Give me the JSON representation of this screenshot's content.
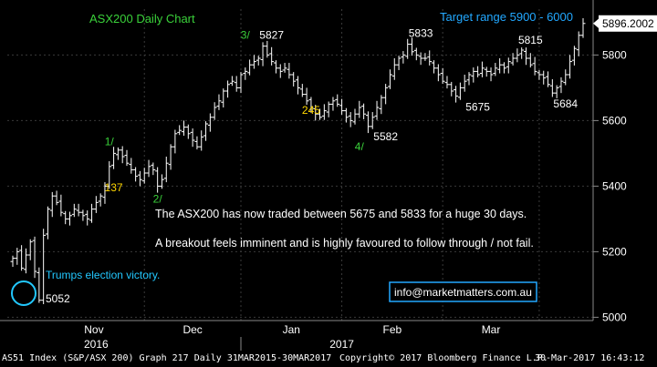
{
  "chart_data": {
    "type": "ohlc",
    "title": "ASX200 Daily Chart",
    "target_note": "Target range 5900 - 6000",
    "last_price": "5896.2002",
    "ylim": [
      4990,
      5940
    ],
    "yticks": [
      5000,
      5200,
      5400,
      5600,
      5800
    ],
    "months": [
      "Nov",
      "Dec",
      "Jan",
      "Feb",
      "Mar"
    ],
    "years": [
      "2016",
      "2017"
    ],
    "closes": [
      5180,
      5200,
      5150,
      5190,
      5230,
      5140,
      5052,
      5250,
      5330,
      5370,
      5350,
      5320,
      5300,
      5310,
      5330,
      5320,
      5310,
      5300,
      5330,
      5350,
      5370,
      5400,
      5460,
      5500,
      5510,
      5490,
      5470,
      5450,
      5430,
      5420,
      5440,
      5460,
      5450,
      5400,
      5420,
      5470,
      5520,
      5560,
      5570,
      5580,
      5560,
      5540,
      5520,
      5550,
      5590,
      5610,
      5640,
      5660,
      5690,
      5710,
      5720,
      5700,
      5740,
      5750,
      5770,
      5780,
      5790,
      5827,
      5800,
      5780,
      5760,
      5750,
      5760,
      5740,
      5720,
      5700,
      5680,
      5660,
      5640,
      5620,
      5610,
      5630,
      5650,
      5660,
      5650,
      5630,
      5610,
      5600,
      5620,
      5640,
      5620,
      5582,
      5610,
      5640,
      5670,
      5700,
      5740,
      5770,
      5790,
      5800,
      5833,
      5810,
      5800,
      5790,
      5790,
      5780,
      5760,
      5740,
      5720,
      5710,
      5690,
      5675,
      5700,
      5720,
      5740,
      5750,
      5740,
      5760,
      5750,
      5740,
      5760,
      5770,
      5760,
      5780,
      5790,
      5800,
      5815,
      5790,
      5770,
      5750,
      5740,
      5730,
      5710,
      5684,
      5700,
      5720,
      5740,
      5780,
      5820,
      5860,
      5896.2
    ],
    "annotations": [
      {
        "text": "1/",
        "x": 22,
        "y": 5525,
        "color": "#3ad13a"
      },
      {
        "text": "137",
        "x": 23,
        "y": 5385,
        "color": "#ffd700"
      },
      {
        "text": "2/",
        "x": 33,
        "y": 5350,
        "color": "#3ad13a"
      },
      {
        "text": "3/",
        "x": 53,
        "y": 5850,
        "color": "#3ad13a"
      },
      {
        "text": "5827",
        "x": 59,
        "y": 5850,
        "color": "#ffffff"
      },
      {
        "text": "245",
        "x": 68,
        "y": 5620,
        "color": "#ffd700"
      },
      {
        "text": "4/",
        "x": 79,
        "y": 5510,
        "color": "#3ad13a"
      },
      {
        "text": "5582",
        "x": 85,
        "y": 5540,
        "color": "#ffffff"
      },
      {
        "text": "5833",
        "x": 93,
        "y": 5855,
        "color": "#ffffff"
      },
      {
        "text": "5675",
        "x": 106,
        "y": 5630,
        "color": "#ffffff"
      },
      {
        "text": "5815",
        "x": 118,
        "y": 5835,
        "color": "#ffffff"
      },
      {
        "text": "5684",
        "x": 126,
        "y": 5640,
        "color": "#ffffff"
      }
    ],
    "comment_lines": [
      "The ASX200 has now traded between 5675 and 5833 for a huge 30 days.",
      "A breakout feels imminent and is highly favoured to follow through / not fail."
    ],
    "election_label": "Trumps election victory.",
    "election_low": "5052",
    "contact": "info@marketmatters.com.au"
  },
  "footer": {
    "left": "AS51 Index (S&P/ASX 200) Graph 217  Daily 31MAR2015-30MAR2017",
    "center": "Copyright© 2017 Bloomberg Finance L.P.",
    "right": "30-Mar-2017 16:43:12"
  },
  "colors": {
    "background": "#000000",
    "price_bars": "#ffffff",
    "grid": "#333333",
    "title": "#3ad13a",
    "target_note": "#22a8ff",
    "election": "#22c8ff"
  }
}
